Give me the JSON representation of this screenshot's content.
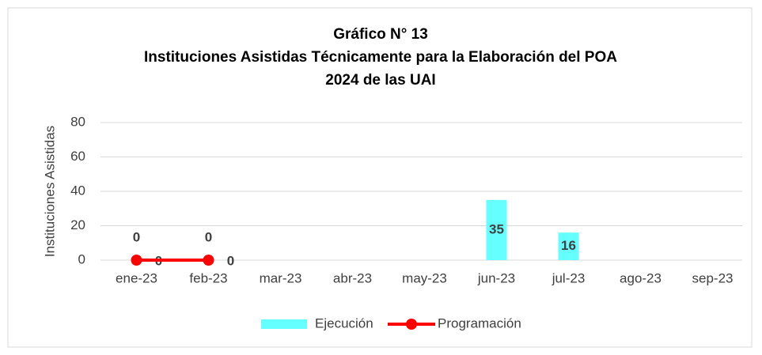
{
  "chart_data": {
    "type": "bar",
    "title": [
      "Gráfico N° 13",
      "Instituciones Asistidas Técnicamente para la Elaboración del POA",
      "2024 de las UAI"
    ],
    "ylabel": "Instituciones Asistidas",
    "categories": [
      "ene-23",
      "feb-23",
      "mar-23",
      "abr-23",
      "may-23",
      "jun-23",
      "jul-23",
      "ago-23",
      "sep-23"
    ],
    "series": [
      {
        "name": "Ejecución",
        "type": "bar",
        "color": "#66ffff",
        "values": [
          0,
          0,
          null,
          null,
          null,
          35,
          16,
          null,
          null
        ]
      },
      {
        "name": "Programación",
        "type": "line",
        "color": "#ff0000",
        "values": [
          0,
          0,
          null,
          null,
          null,
          null,
          null,
          null,
          null
        ]
      }
    ],
    "ylim": [
      0,
      80
    ],
    "yticks": [
      0,
      20,
      40,
      60,
      80
    ],
    "grid": true,
    "legend": "bottom"
  }
}
